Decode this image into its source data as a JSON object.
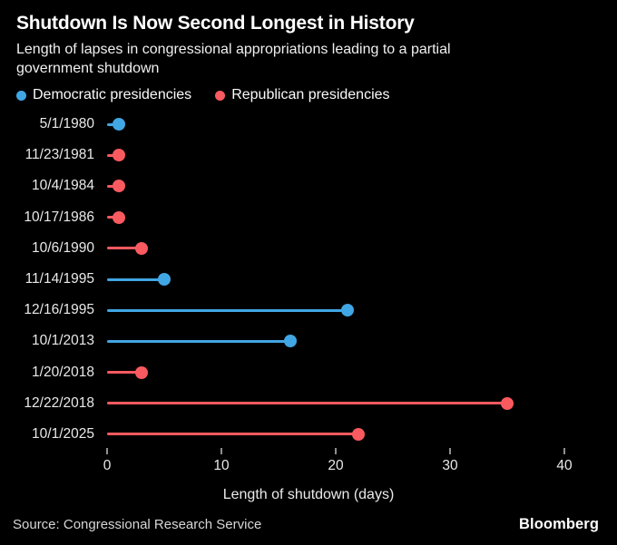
{
  "header": {
    "title": "Shutdown Is Now Second Longest in History",
    "subtitle_lines": [
      "Length of lapses in congressional appropriations leading to a partial",
      "government shutdown"
    ]
  },
  "colors": {
    "Democratic": "#41A6E4",
    "Republican": "#F95A5F",
    "background": "#000000",
    "tick": "#8F8F8F",
    "text": "#E9E9E9"
  },
  "legend": [
    {
      "party": "Democratic",
      "label": "Democratic presidencies"
    },
    {
      "party": "Republican",
      "label": "Republican presidencies"
    }
  ],
  "chart_data": {
    "type": "bar",
    "style": "lollipop",
    "orientation": "horizontal",
    "title": "Shutdown Is Now Second Longest in History",
    "xlabel": "Length of shutdown (days)",
    "ylabel": "",
    "xlim": [
      0,
      44.6
    ],
    "xticks": [
      0,
      10,
      20,
      30,
      40
    ],
    "grid": false,
    "legend_position": "top-left",
    "rows": [
      {
        "date": "5/1/1980",
        "party": "Democratic",
        "days": 1
      },
      {
        "date": "11/23/1981",
        "party": "Republican",
        "days": 1
      },
      {
        "date": "10/4/1984",
        "party": "Republican",
        "days": 1
      },
      {
        "date": "10/17/1986",
        "party": "Republican",
        "days": 1
      },
      {
        "date": "10/6/1990",
        "party": "Republican",
        "days": 3
      },
      {
        "date": "11/14/1995",
        "party": "Democratic",
        "days": 5
      },
      {
        "date": "12/16/1995",
        "party": "Democratic",
        "days": 21
      },
      {
        "date": "10/1/2013",
        "party": "Democratic",
        "days": 16
      },
      {
        "date": "1/20/2018",
        "party": "Republican",
        "days": 3
      },
      {
        "date": "12/22/2018",
        "party": "Republican",
        "days": 35
      },
      {
        "date": "10/1/2025",
        "party": "Republican",
        "days": 22
      }
    ]
  },
  "footer": {
    "source": "Source: Congressional Research Service",
    "brand": "Bloomberg"
  }
}
